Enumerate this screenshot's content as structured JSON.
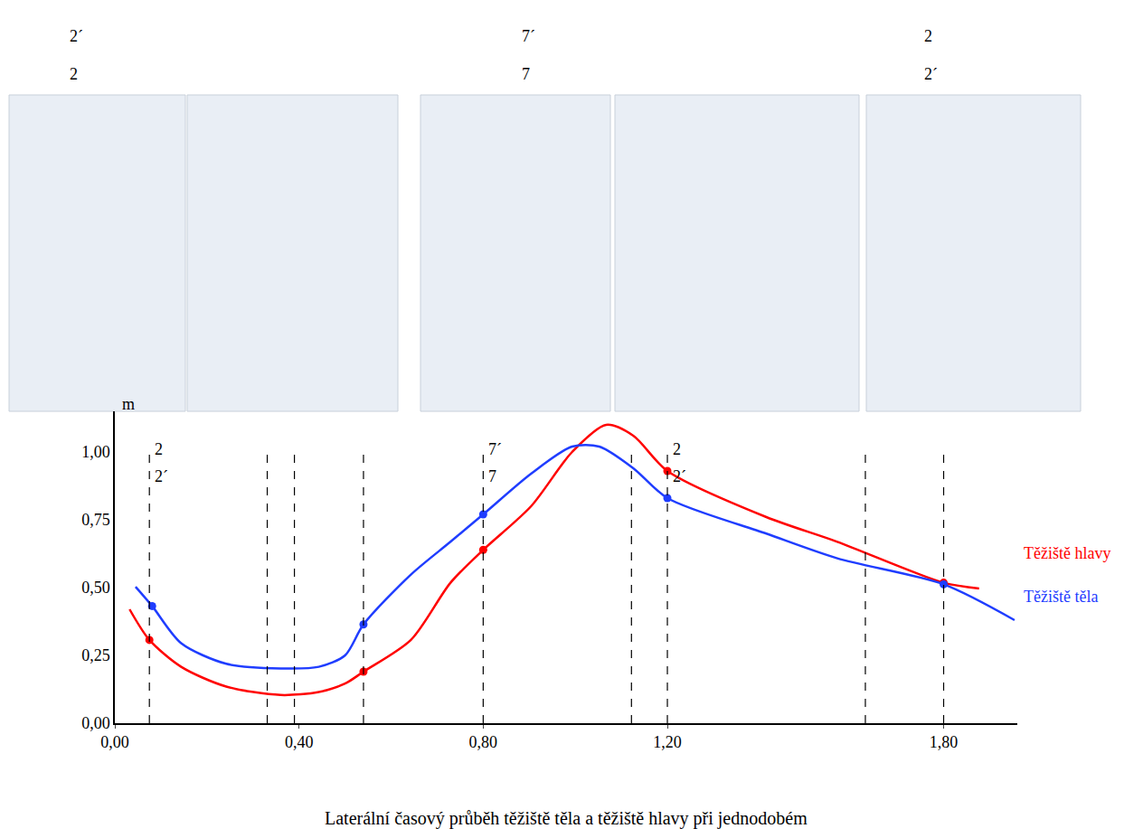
{
  "chart_data": {
    "type": "line",
    "caption": "Laterální časový průběh těžiště těla a těžiště hlavy při jednodobém",
    "y_unit_label": "m",
    "xlim": [
      0,
      1.96
    ],
    "ylim": [
      0,
      1.15
    ],
    "xticks": [
      {
        "value": 0,
        "label": "0,00"
      },
      {
        "value": 0.4,
        "label": "0,40"
      },
      {
        "value": 0.8,
        "label": "0,80"
      },
      {
        "value": 1.2,
        "label": "1,20"
      },
      {
        "value": 1.8,
        "label": "1,80"
      }
    ],
    "yticks": [
      {
        "value": 0,
        "label": "0,00"
      },
      {
        "value": 0.25,
        "label": "0,25"
      },
      {
        "value": 0.5,
        "label": "0,50"
      },
      {
        "value": 0.75,
        "label": "0,75"
      },
      {
        "value": 1,
        "label": "1,00"
      }
    ],
    "grid": false,
    "series": [
      {
        "name": "Těžiště hlavy",
        "color": "#ff0000",
        "line_style": "solid",
        "marker": "circle",
        "x": [
          0.032,
          0.075,
          0.144,
          0.242,
          0.36,
          0.443,
          0.5,
          0.54,
          0.643,
          0.729,
          0.8,
          0.904,
          0.993,
          1.067,
          1.126,
          1.2,
          1.415,
          1.569,
          1.8,
          1.877
        ],
        "values": [
          0.42,
          0.307,
          0.208,
          0.135,
          0.104,
          0.115,
          0.146,
          0.19,
          0.307,
          0.518,
          0.639,
          0.8,
          1.0,
          1.1,
          1.06,
          0.93,
          0.76,
          0.669,
          0.518,
          0.497
        ],
        "marked_points": {
          "x": [
            0.075,
            0.54,
            0.8,
            1.2,
            1.8
          ],
          "y": [
            0.307,
            0.19,
            0.639,
            0.93,
            0.518
          ]
        }
      },
      {
        "name": "Těžiště těla",
        "color": "#1f3dff",
        "line_style": "solid",
        "marker": "circle",
        "x": [
          0.045,
          0.081,
          0.144,
          0.242,
          0.36,
          0.443,
          0.5,
          0.54,
          0.643,
          0.729,
          0.8,
          0.904,
          0.993,
          1.052,
          1.126,
          1.2,
          1.415,
          1.569,
          1.8,
          1.954
        ],
        "values": [
          0.503,
          0.432,
          0.295,
          0.219,
          0.202,
          0.208,
          0.25,
          0.364,
          0.548,
          0.669,
          0.77,
          0.92,
          1.02,
          1.02,
          0.94,
          0.83,
          0.699,
          0.608,
          0.512,
          0.38
        ],
        "marked_points": {
          "x": [
            0.081,
            0.54,
            0.8,
            1.2,
            1.8
          ],
          "y": [
            0.432,
            0.364,
            0.77,
            0.83,
            0.512
          ]
        }
      }
    ],
    "vertical_lines": [
      0.075,
      0.331,
      0.39,
      0.54,
      0.8,
      1.122,
      1.2,
      1.63,
      1.8
    ],
    "chart_frame_labels": [
      {
        "x": 0.075,
        "lines": [
          "2",
          "2´"
        ]
      },
      {
        "x": 0.8,
        "lines": [
          "7´",
          "7"
        ]
      },
      {
        "x": 1.2,
        "lines": [
          "2",
          "2´"
        ]
      }
    ],
    "photo_frame_labels": [
      {
        "lines": [
          "2´",
          "2"
        ]
      },
      {
        "lines": [
          "7´",
          "7"
        ]
      },
      {
        "lines": [
          "2",
          "2´"
        ]
      }
    ]
  }
}
